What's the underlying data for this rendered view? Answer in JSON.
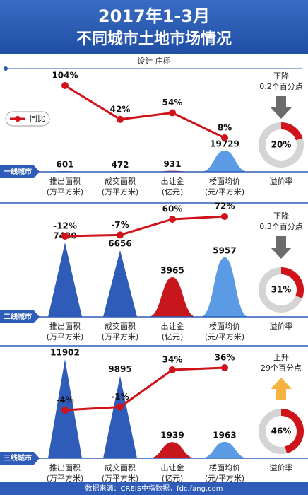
{
  "title": "2017年1-3月",
  "subtitle": "不同城市土地市场情况",
  "credit": "设计  庄栩",
  "source": "数据来源：CREIS中指数据，fdc.fang.com",
  "chart_data": [
    {
      "type": "peaks",
      "tier": "一线城市",
      "categories": [
        "推出面积",
        "成交面积",
        "出让金",
        "楼面均价"
      ],
      "units": [
        "(万平方米)",
        "(万平方米)",
        "(亿元)",
        "(元/平方米)"
      ],
      "values": [
        601,
        472,
        931,
        19729
      ],
      "colors": [
        "#2e5cb8",
        "#2e5cb8",
        "#c8161d",
        "#5b9be6"
      ],
      "shapes": [
        "bell",
        "bell",
        "bell",
        "bell"
      ],
      "series": [
        {
          "name": "同比",
          "color": "#d0121b",
          "values": [
            104,
            42,
            54,
            8
          ],
          "value_labels": [
            "104%",
            "42%",
            "54%",
            "8%"
          ]
        }
      ],
      "premium": {
        "label": "溢价率",
        "value": 20,
        "value_label": "20%",
        "change": "下降",
        "amount": "0.2个百分点",
        "arrow": "down",
        "arrow_color": "#6b6b6b"
      }
    },
    {
      "type": "peaks",
      "tier": "二线城市",
      "categories": [
        "推出面积",
        "成交面积",
        "出让金",
        "楼面均价"
      ],
      "units": [
        "(万平方米)",
        "(万平方米)",
        "(亿元)",
        "(元/平方米)"
      ],
      "values": [
        7430,
        6656,
        3965,
        5957
      ],
      "colors": [
        "#2e5cb8",
        "#2e5cb8",
        "#c8161d",
        "#5b9be6"
      ],
      "shapes": [
        "spike",
        "spike",
        "bell",
        "bell"
      ],
      "series": [
        {
          "color": "#d0121b",
          "values": [
            -12,
            -7,
            60,
            72
          ],
          "value_labels": [
            "-12%",
            "-7%",
            "60%",
            "72%"
          ]
        }
      ],
      "premium": {
        "label": "溢价率",
        "value": 31,
        "value_label": "31%",
        "change": "下降",
        "amount": "0.3个百分点",
        "arrow": "down",
        "arrow_color": "#6b6b6b"
      }
    },
    {
      "type": "peaks",
      "tier": "三线城市",
      "categories": [
        "推出面积",
        "成交面积",
        "出让金",
        "楼面均价"
      ],
      "units": [
        "(万平方米)",
        "(万平方米)",
        "(亿元)",
        "(元/平方米)"
      ],
      "values": [
        11902,
        9895,
        1939,
        1963
      ],
      "colors": [
        "#2e5cb8",
        "#2e5cb8",
        "#c8161d",
        "#5b9be6"
      ],
      "shapes": [
        "spike",
        "spike",
        "bell",
        "bell"
      ],
      "series": [
        {
          "color": "#d0121b",
          "values": [
            -4,
            -1,
            34,
            36
          ],
          "value_labels": [
            "-4%",
            "-1%",
            "34%",
            "36%"
          ]
        }
      ],
      "premium": {
        "label": "溢价率",
        "value": 46,
        "value_label": "46%",
        "change": "上升",
        "amount": "29个百分点",
        "arrow": "up",
        "arrow_color": "#f5b23c"
      }
    }
  ]
}
